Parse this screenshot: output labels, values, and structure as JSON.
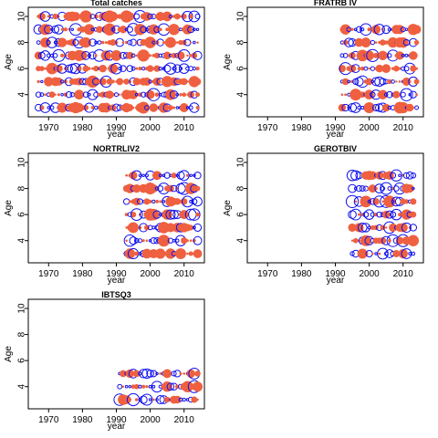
{
  "colors": {
    "observed": "#ef6040",
    "predicted": "#1010ee",
    "axis": "#000000",
    "background": "#ffffff"
  },
  "chart_data": [
    {
      "type": "scatter",
      "title": "Total catches",
      "xlabel": "year",
      "ylabel": "Age",
      "xlim": [
        1964,
        2016
      ],
      "ylim": [
        2.3,
        10.7
      ],
      "xticks": [
        1970,
        1980,
        1990,
        2000,
        2010
      ],
      "yticks": [
        4,
        6,
        8,
        10
      ],
      "years": [
        1967,
        2014
      ],
      "ages": [
        3,
        10
      ]
    },
    {
      "type": "scatter",
      "title": "FRATRB IV",
      "xlabel": "year",
      "ylabel": "Age",
      "xlim": [
        1964,
        2016
      ],
      "ylim": [
        2.3,
        10.7
      ],
      "xticks": [
        1970,
        1980,
        1990,
        2000,
        2010
      ],
      "yticks": [
        4,
        6,
        8,
        10
      ],
      "years": [
        1992,
        2014
      ],
      "ages": [
        3,
        9
      ]
    },
    {
      "type": "scatter",
      "title": "NORTRLIV2",
      "xlabel": "year",
      "ylabel": "Age",
      "xlim": [
        1964,
        2016
      ],
      "ylim": [
        2.3,
        10.7
      ],
      "xticks": [
        1970,
        1980,
        1990,
        2000,
        2010
      ],
      "yticks": [
        4,
        6,
        8,
        10
      ],
      "years": [
        1993,
        2014
      ],
      "ages": [
        3,
        9
      ]
    },
    {
      "type": "scatter",
      "title": "GEROTBIV",
      "xlabel": "year",
      "ylabel": "Age",
      "xlim": [
        1964,
        2016
      ],
      "ylim": [
        2.3,
        10.7
      ],
      "xticks": [
        1970,
        1980,
        1990,
        2000,
        2010
      ],
      "yticks": [
        4,
        6,
        8,
        10
      ],
      "years": [
        1995,
        2013
      ],
      "ages": [
        3,
        9
      ]
    },
    {
      "type": "scatter",
      "title": "IBTSQ3",
      "xlabel": "year",
      "ylabel": "Age",
      "xlim": [
        1964,
        2016
      ],
      "ylim": [
        2.3,
        10.7
      ],
      "xticks": [
        1970,
        1980,
        1990,
        2000,
        2010
      ],
      "yticks": [
        4,
        6,
        8,
        10
      ],
      "years": [
        1991,
        2014
      ],
      "ages": [
        3,
        5
      ]
    }
  ]
}
